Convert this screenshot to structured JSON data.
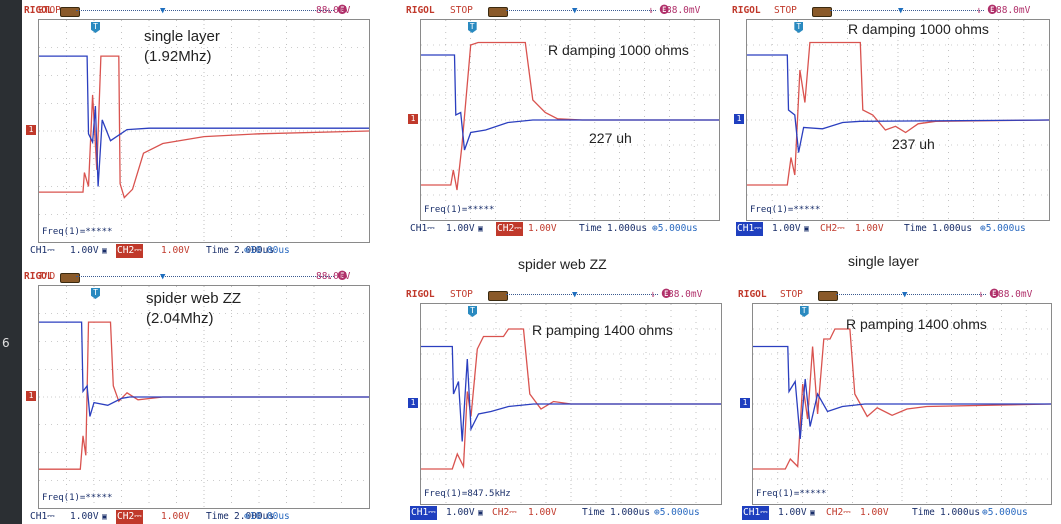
{
  "captions": [
    "spider web ZZ",
    "single layer"
  ],
  "edge_label": "6",
  "scopes": [
    {
      "brand": "RIGOL",
      "status": "STOP",
      "trigger_glyph": "⇂ 🅔",
      "trigger_level": "88.0mV",
      "freq": "Freq(1)=*****",
      "ch1_label": "CH1⎓",
      "ch1_scale": "1.00V",
      "ch2_label": "CH2⎓",
      "ch2_scale": "1.00V",
      "time_label": "Time",
      "time_scale": "2.000us",
      "trigger_pos": "⊕10.00us",
      "ch1_highlight": false,
      "ch2_highlight": true,
      "marker_side": "red",
      "annotations": [
        "single layer",
        "(1.92Mhz)"
      ],
      "chart_data": {
        "type": "line",
        "x_unit": "div",
        "y_unit": "div",
        "xlim": [
          0,
          12
        ],
        "ylim": [
          -4,
          4
        ],
        "series": [
          {
            "color": "#2b3fbf",
            "points": [
              [
                0,
                2.7
              ],
              [
                1.75,
                2.7
              ],
              [
                1.8,
                -0.1
              ],
              [
                1.95,
                -0.4
              ],
              [
                2.05,
                0.9
              ],
              [
                2.15,
                -2.0
              ],
              [
                2.3,
                0.4
              ],
              [
                2.6,
                -0.35
              ],
              [
                3.2,
                0.05
              ],
              [
                4,
                0.1
              ],
              [
                12,
                0.1
              ]
            ]
          },
          {
            "color": "#d9534f",
            "points": [
              [
                0,
                -2.2
              ],
              [
                1.6,
                -2.2
              ],
              [
                1.65,
                -1.5
              ],
              [
                1.8,
                -2.0
              ],
              [
                1.95,
                1.3
              ],
              [
                2.1,
                -1.4
              ],
              [
                2.25,
                2.7
              ],
              [
                2.9,
                2.7
              ],
              [
                2.95,
                -1.9
              ],
              [
                3.1,
                -2.4
              ],
              [
                3.4,
                -2.1
              ],
              [
                3.8,
                -0.8
              ],
              [
                4.5,
                -0.45
              ],
              [
                6,
                -0.2
              ],
              [
                8,
                -0.1
              ],
              [
                12,
                0
              ]
            ]
          }
        ]
      }
    },
    {
      "brand": "RIGOL",
      "status": "T'D",
      "trigger_glyph": "⇂ 🅔",
      "trigger_level": "88.0mV",
      "freq": "Freq(1)=*****",
      "ch1_label": "CH1⎓",
      "ch1_scale": "1.00V",
      "ch2_label": "CH2⎓",
      "ch2_scale": "1.00V",
      "time_label": "Time",
      "time_scale": "2.000us",
      "trigger_pos": "⊕10.00us",
      "ch1_highlight": false,
      "ch2_highlight": true,
      "marker_side": "red",
      "annotations": [
        "spider web ZZ",
        "(2.04Mhz)"
      ],
      "chart_data": {
        "type": "line",
        "x_unit": "div",
        "y_unit": "div",
        "xlim": [
          0,
          12
        ],
        "ylim": [
          -4,
          4
        ],
        "series": [
          {
            "color": "#2b3fbf",
            "points": [
              [
                0,
                2.7
              ],
              [
                1.55,
                2.7
              ],
              [
                1.6,
                0.2
              ],
              [
                1.75,
                0.4
              ],
              [
                1.85,
                -0.7
              ],
              [
                2.0,
                -0.2
              ],
              [
                2.5,
                -0.3
              ],
              [
                3.0,
                -0.05
              ],
              [
                3.3,
                0
              ],
              [
                12,
                0
              ]
            ]
          },
          {
            "color": "#d9534f",
            "points": [
              [
                0,
                -2.6
              ],
              [
                1.5,
                -2.6
              ],
              [
                1.6,
                -1.4
              ],
              [
                1.7,
                -2.1
              ],
              [
                1.8,
                2.7
              ],
              [
                2.6,
                2.7
              ],
              [
                2.7,
                0.4
              ],
              [
                2.9,
                -0.15
              ],
              [
                3.2,
                0.15
              ],
              [
                3.6,
                -0.1
              ],
              [
                4.5,
                0
              ],
              [
                12,
                0
              ]
            ]
          }
        ]
      }
    },
    {
      "brand": "RIGOL",
      "status": "STOP",
      "trigger_glyph": "⇂ 🅔",
      "trigger_level": "88.0mV",
      "freq": "Freq(1)=*****",
      "ch1_label": "CH1⎓",
      "ch1_scale": "1.00V",
      "ch2_label": "CH2⎓",
      "ch2_scale": "1.00V",
      "time_label": "Time",
      "time_scale": "1.000us",
      "trigger_pos": "⊕5.000us",
      "ch1_highlight": false,
      "ch2_highlight": true,
      "marker_side": "red",
      "annotations": [
        "R damping  1000 ohms",
        "227 uh"
      ],
      "chart_data": {
        "type": "line",
        "x_unit": "div",
        "y_unit": "div",
        "xlim": [
          0,
          12
        ],
        "ylim": [
          -4,
          4
        ],
        "series": [
          {
            "color": "#2b3fbf",
            "points": [
              [
                0,
                2.6
              ],
              [
                1.35,
                2.6
              ],
              [
                1.4,
                0.2
              ],
              [
                1.6,
                0.3
              ],
              [
                1.75,
                -1.2
              ],
              [
                2.0,
                -0.5
              ],
              [
                2.6,
                -0.4
              ],
              [
                3.5,
                -0.1
              ],
              [
                4.5,
                0
              ],
              [
                12,
                0
              ]
            ]
          },
          {
            "color": "#d9534f",
            "points": [
              [
                0,
                -2.6
              ],
              [
                1.2,
                -2.6
              ],
              [
                1.3,
                -2.0
              ],
              [
                1.45,
                -2.8
              ],
              [
                1.65,
                -1.0
              ],
              [
                2.0,
                3.0
              ],
              [
                2.3,
                3.1
              ],
              [
                4.2,
                3.1
              ],
              [
                4.5,
                0.8
              ],
              [
                5.0,
                0.3
              ],
              [
                5.5,
                0.05
              ],
              [
                6.5,
                0
              ],
              [
                12,
                0
              ]
            ]
          }
        ]
      }
    },
    {
      "brand": "RIGOL",
      "status": "STOP",
      "trigger_glyph": "⇂ 🅔",
      "trigger_level": "88.0mV",
      "freq": "Freq(1)=*****",
      "ch1_label": "CH1⎓",
      "ch1_scale": "1.00V",
      "ch2_label": "CH2⎓",
      "ch2_scale": "1.00V",
      "time_label": "Time",
      "time_scale": "1.000us",
      "trigger_pos": "⊕5.000us",
      "ch1_highlight": true,
      "ch2_highlight": false,
      "marker_side": "blue",
      "annotations": [
        "R damping  1000 ohms",
        "237 uh"
      ],
      "chart_data": {
        "type": "line",
        "x_unit": "div",
        "y_unit": "div",
        "xlim": [
          0,
          12
        ],
        "ylim": [
          -4,
          4
        ],
        "series": [
          {
            "color": "#2b3fbf",
            "points": [
              [
                0,
                2.6
              ],
              [
                1.6,
                2.6
              ],
              [
                1.65,
                0.4
              ],
              [
                1.9,
                0.2
              ],
              [
                2.05,
                -1.3
              ],
              [
                2.25,
                -0.3
              ],
              [
                3.0,
                -0.35
              ],
              [
                3.8,
                -0.1
              ],
              [
                4.5,
                -0.05
              ],
              [
                12,
                0
              ]
            ]
          },
          {
            "color": "#d9534f",
            "points": [
              [
                0,
                -2.6
              ],
              [
                1.6,
                -2.6
              ],
              [
                1.75,
                -1.5
              ],
              [
                1.9,
                -2.2
              ],
              [
                2.1,
                2.0
              ],
              [
                2.3,
                0.7
              ],
              [
                2.5,
                3.1
              ],
              [
                4.5,
                3.1
              ],
              [
                4.6,
                0.4
              ],
              [
                5.0,
                0.2
              ],
              [
                5.5,
                -0.4
              ],
              [
                5.9,
                -0.25
              ],
              [
                6.3,
                -0.5
              ],
              [
                6.8,
                -0.15
              ],
              [
                7.5,
                -0.05
              ],
              [
                12,
                0
              ]
            ]
          }
        ]
      }
    },
    {
      "brand": "RIGOL",
      "status": "STOP",
      "trigger_glyph": "⇂ 🅔",
      "trigger_level": "88.0mV",
      "freq": "Freq(1)=847.5kHz",
      "ch1_label": "CH1⎓",
      "ch1_scale": "1.00V",
      "ch2_label": "CH2⎓",
      "ch2_scale": "1.00V",
      "time_label": "Time",
      "time_scale": "1.000us",
      "trigger_pos": "⊕5.000us",
      "ch1_highlight": true,
      "ch2_highlight": false,
      "marker_side": "blue",
      "annotations": [
        "R pamping  1400 ohms"
      ],
      "chart_data": {
        "type": "line",
        "x_unit": "div",
        "y_unit": "div",
        "xlim": [
          0,
          12
        ],
        "ylim": [
          -4,
          4
        ],
        "series": [
          {
            "color": "#2b3fbf",
            "points": [
              [
                0,
                2.3
              ],
              [
                1.25,
                2.3
              ],
              [
                1.3,
                0.4
              ],
              [
                1.5,
                0.9
              ],
              [
                1.65,
                -1.5
              ],
              [
                1.85,
                1.8
              ],
              [
                2.0,
                -1.0
              ],
              [
                2.3,
                -0.4
              ],
              [
                2.8,
                -0.3
              ],
              [
                3.5,
                -0.1
              ],
              [
                4.5,
                0
              ],
              [
                12,
                0
              ]
            ]
          },
          {
            "color": "#d9534f",
            "points": [
              [
                0,
                -2.6
              ],
              [
                1.25,
                -2.6
              ],
              [
                1.45,
                -2.0
              ],
              [
                1.7,
                -2.5
              ],
              [
                1.85,
                0.5
              ],
              [
                2.0,
                -0.5
              ],
              [
                2.25,
                2.2
              ],
              [
                2.5,
                2.7
              ],
              [
                3.3,
                2.7
              ],
              [
                3.5,
                3.0
              ],
              [
                4.1,
                3.0
              ],
              [
                4.35,
                0.4
              ],
              [
                4.8,
                -0.2
              ],
              [
                5.3,
                0.1
              ],
              [
                6.0,
                0
              ],
              [
                12,
                0
              ]
            ]
          }
        ]
      }
    },
    {
      "brand": "RIGOL",
      "status": "STOP",
      "trigger_glyph": "⇂ 🅔",
      "trigger_level": "88.0mV",
      "freq": "Freq(1)=*****",
      "ch1_label": "CH1⎓",
      "ch1_scale": "1.00V",
      "ch2_label": "CH2⎓",
      "ch2_scale": "1.00V",
      "time_label": "Time",
      "time_scale": "1.000us",
      "trigger_pos": "⊕5.000us",
      "ch1_highlight": true,
      "ch2_highlight": false,
      "marker_side": "blue",
      "annotations": [
        "R pamping  1400 ohms"
      ],
      "chart_data": {
        "type": "line",
        "x_unit": "div",
        "y_unit": "div",
        "xlim": [
          0,
          12
        ],
        "ylim": [
          -4,
          4
        ],
        "series": [
          {
            "color": "#2b3fbf",
            "points": [
              [
                0,
                2.3
              ],
              [
                1.4,
                2.3
              ],
              [
                1.45,
                0.5
              ],
              [
                1.7,
                0.9
              ],
              [
                1.9,
                -1.4
              ],
              [
                2.1,
                1.0
              ],
              [
                2.3,
                -0.9
              ],
              [
                2.6,
                0.4
              ],
              [
                3.0,
                -0.3
              ],
              [
                3.6,
                -0.1
              ],
              [
                4.5,
                0
              ],
              [
                12,
                0
              ]
            ]
          },
          {
            "color": "#d9534f",
            "points": [
              [
                0,
                -2.6
              ],
              [
                1.3,
                -2.6
              ],
              [
                1.5,
                -2.2
              ],
              [
                1.8,
                -2.5
              ],
              [
                2.0,
                0.8
              ],
              [
                2.2,
                -0.6
              ],
              [
                2.4,
                2.3
              ],
              [
                2.6,
                -0.4
              ],
              [
                2.85,
                2.6
              ],
              [
                3.1,
                2.6
              ],
              [
                3.3,
                3.0
              ],
              [
                3.9,
                3.0
              ],
              [
                4.1,
                0.4
              ],
              [
                4.6,
                -0.5
              ],
              [
                5.0,
                -0.15
              ],
              [
                5.6,
                -0.45
              ],
              [
                6.2,
                -0.2
              ],
              [
                7.0,
                -0.1
              ],
              [
                12,
                0
              ]
            ]
          }
        ]
      }
    }
  ]
}
